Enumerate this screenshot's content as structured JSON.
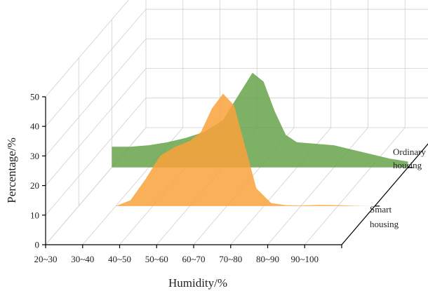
{
  "chart_data": {
    "type": "area",
    "projection": "3d-waterfall",
    "xlabel": "Humidity/%",
    "ylabel": "Percentage/%",
    "categories": [
      "20~30",
      "30~40",
      "40~50",
      "50~60",
      "60~70",
      "70~80",
      "80~90",
      "90~100"
    ],
    "ylim": [
      0,
      50
    ],
    "yticks": [
      0,
      10,
      20,
      30,
      40,
      50
    ],
    "grid": true,
    "series": [
      {
        "name": "Smart housing",
        "name_lines": [
          "Smart",
          "housing"
        ],
        "color": "#f9a23b",
        "x": [
          30,
          34,
          38,
          42,
          46,
          50,
          53,
          56,
          59,
          62,
          65,
          68,
          72,
          76,
          80,
          85,
          90,
          95,
          100
        ],
        "y": [
          0,
          2,
          9,
          17,
          20,
          22,
          25,
          33,
          38,
          34,
          20,
          6,
          1,
          0.3,
          0.2,
          0.4,
          0.3,
          0.1,
          0
        ]
      },
      {
        "name": "Ordinary housing",
        "name_lines": [
          "Ordinary",
          "housing"
        ],
        "color": "#66a34b",
        "x": [
          20,
          25,
          30,
          35,
          40,
          45,
          50,
          55,
          58,
          61,
          64,
          67,
          70,
          75,
          80,
          85,
          90,
          95,
          100
        ],
        "y": [
          7,
          7,
          7.5,
          8.5,
          10,
          12,
          16,
          26,
          32,
          29,
          19,
          11,
          8.5,
          8,
          7.5,
          6,
          4.5,
          3,
          2
        ]
      }
    ]
  }
}
